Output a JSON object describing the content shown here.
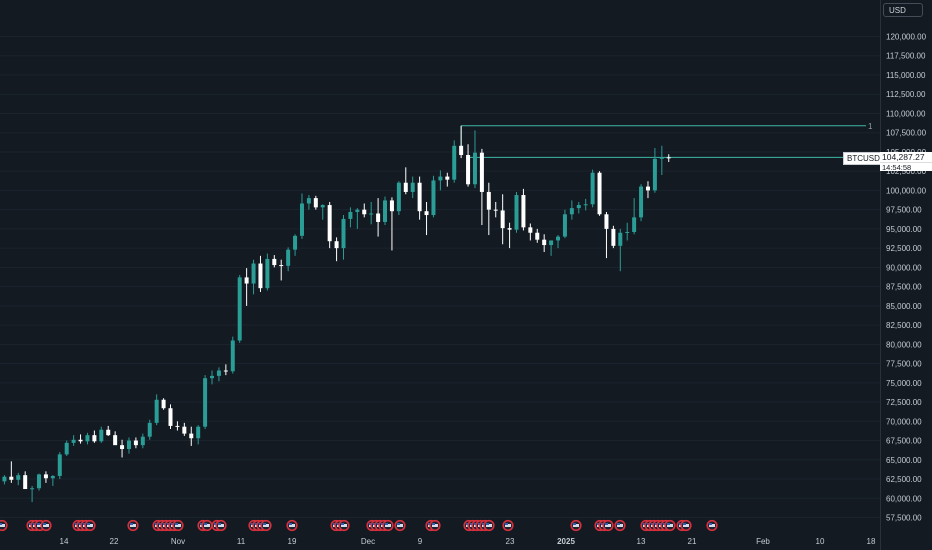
{
  "symbol": "BTCUSD",
  "currency": "USD",
  "last_price": "104,287.27",
  "countdown": "14:54:58",
  "level_marker": "1",
  "colors": {
    "background": "#131a22",
    "up": "#2a9d97",
    "down": "#ffffff",
    "axis_text": "#c7ccd4",
    "level_line": "#3fb6a8",
    "event_badge": "#d8303c"
  },
  "y_ticks": [
    "120,000.00",
    "117,500.00",
    "115,000.00",
    "112,500.00",
    "110,000.00",
    "107,500.00",
    "105,000.00",
    "102,500.00",
    "100,000.00",
    "97,500.00",
    "95,000.00",
    "92,500.00",
    "90,000.00",
    "87,500.00",
    "85,000.00",
    "82,500.00",
    "80,000.00",
    "77,500.00",
    "75,000.00",
    "72,500.00",
    "70,000.00",
    "67,500.00",
    "65,000.00",
    "62,500.00",
    "60,000.00",
    "57,500.00"
  ],
  "x_ticks": [
    "14",
    "22",
    "Nov",
    "11",
    "19",
    "Dec",
    "9",
    "23",
    "2025",
    "13",
    "21",
    "Feb",
    "10",
    "18"
  ],
  "chart_data": {
    "type": "candlestick",
    "y_range": [
      55000,
      124000
    ],
    "horizontal_levels": [
      108400,
      104287.27
    ],
    "candles": [
      {
        "o": 61500,
        "h": 62500,
        "l": 61000,
        "c": 62200
      },
      {
        "o": 62200,
        "h": 63000,
        "l": 61800,
        "c": 62800
      },
      {
        "o": 62800,
        "h": 64800,
        "l": 62000,
        "c": 62400
      },
      {
        "o": 62400,
        "h": 63300,
        "l": 61700,
        "c": 63000
      },
      {
        "o": 63000,
        "h": 63500,
        "l": 61500,
        "c": 61200
      },
      {
        "o": 61200,
        "h": 61600,
        "l": 59500,
        "c": 61300
      },
      {
        "o": 61300,
        "h": 63200,
        "l": 61000,
        "c": 63100
      },
      {
        "o": 63100,
        "h": 63500,
        "l": 62000,
        "c": 62600
      },
      {
        "o": 62600,
        "h": 63000,
        "l": 61600,
        "c": 62900
      },
      {
        "o": 62900,
        "h": 66000,
        "l": 62500,
        "c": 65700
      },
      {
        "o": 65700,
        "h": 67500,
        "l": 65500,
        "c": 67200
      },
      {
        "o": 67200,
        "h": 68200,
        "l": 66800,
        "c": 67600
      },
      {
        "o": 67600,
        "h": 68300,
        "l": 67100,
        "c": 67400
      },
      {
        "o": 67400,
        "h": 68500,
        "l": 67000,
        "c": 68200
      },
      {
        "o": 68200,
        "h": 68800,
        "l": 67200,
        "c": 67400
      },
      {
        "o": 67400,
        "h": 69300,
        "l": 67200,
        "c": 68900
      },
      {
        "o": 68900,
        "h": 69400,
        "l": 68100,
        "c": 68200
      },
      {
        "o": 68200,
        "h": 68700,
        "l": 67200,
        "c": 66900
      },
      {
        "o": 66900,
        "h": 67600,
        "l": 65300,
        "c": 66400
      },
      {
        "o": 66400,
        "h": 67900,
        "l": 65800,
        "c": 67500
      },
      {
        "o": 67500,
        "h": 67900,
        "l": 66500,
        "c": 66900
      },
      {
        "o": 66900,
        "h": 68400,
        "l": 66500,
        "c": 68000
      },
      {
        "o": 68000,
        "h": 70200,
        "l": 67600,
        "c": 69800
      },
      {
        "o": 69800,
        "h": 73500,
        "l": 69500,
        "c": 72800
      },
      {
        "o": 72800,
        "h": 73000,
        "l": 71500,
        "c": 71700
      },
      {
        "o": 71700,
        "h": 72200,
        "l": 69000,
        "c": 69400
      },
      {
        "o": 69400,
        "h": 70000,
        "l": 68800,
        "c": 69300
      },
      {
        "o": 69300,
        "h": 69800,
        "l": 68100,
        "c": 68400
      },
      {
        "o": 68400,
        "h": 69300,
        "l": 66800,
        "c": 67800
      },
      {
        "o": 67800,
        "h": 69500,
        "l": 67000,
        "c": 69300
      },
      {
        "o": 69300,
        "h": 76000,
        "l": 69000,
        "c": 75600
      },
      {
        "o": 75600,
        "h": 76600,
        "l": 74800,
        "c": 75900
      },
      {
        "o": 75900,
        "h": 77000,
        "l": 75200,
        "c": 76600
      },
      {
        "o": 76600,
        "h": 77400,
        "l": 76000,
        "c": 76500
      },
      {
        "o": 76500,
        "h": 81000,
        "l": 76200,
        "c": 80500
      },
      {
        "o": 80500,
        "h": 89000,
        "l": 80200,
        "c": 88700
      },
      {
        "o": 88700,
        "h": 89900,
        "l": 85000,
        "c": 87900
      },
      {
        "o": 87900,
        "h": 91000,
        "l": 86500,
        "c": 90500
      },
      {
        "o": 90500,
        "h": 91500,
        "l": 86800,
        "c": 87300
      },
      {
        "o": 87300,
        "h": 91800,
        "l": 87000,
        "c": 91100
      },
      {
        "o": 91100,
        "h": 91600,
        "l": 90000,
        "c": 90300
      },
      {
        "o": 90300,
        "h": 91000,
        "l": 88300,
        "c": 90200
      },
      {
        "o": 90200,
        "h": 92600,
        "l": 89500,
        "c": 92300
      },
      {
        "o": 92300,
        "h": 94300,
        "l": 91500,
        "c": 94100
      },
      {
        "o": 94100,
        "h": 99600,
        "l": 93700,
        "c": 98300
      },
      {
        "o": 98300,
        "h": 99400,
        "l": 97500,
        "c": 99000
      },
      {
        "o": 99000,
        "h": 99300,
        "l": 97500,
        "c": 97800
      },
      {
        "o": 97800,
        "h": 98200,
        "l": 96200,
        "c": 98100
      },
      {
        "o": 98100,
        "h": 98500,
        "l": 92500,
        "c": 93400
      },
      {
        "o": 93400,
        "h": 93900,
        "l": 90800,
        "c": 92500
      },
      {
        "o": 92500,
        "h": 96800,
        "l": 91000,
        "c": 96300
      },
      {
        "o": 96300,
        "h": 97800,
        "l": 95200,
        "c": 97200
      },
      {
        "o": 97200,
        "h": 97700,
        "l": 95000,
        "c": 97500
      },
      {
        "o": 97500,
        "h": 98300,
        "l": 96500,
        "c": 96900
      },
      {
        "o": 96900,
        "h": 98500,
        "l": 95600,
        "c": 97000
      },
      {
        "o": 97000,
        "h": 99000,
        "l": 94000,
        "c": 95900
      },
      {
        "o": 95900,
        "h": 99200,
        "l": 95500,
        "c": 98700
      },
      {
        "o": 98700,
        "h": 99100,
        "l": 92200,
        "c": 97300
      },
      {
        "o": 97300,
        "h": 101200,
        "l": 96800,
        "c": 101000
      },
      {
        "o": 101000,
        "h": 103000,
        "l": 99500,
        "c": 99800
      },
      {
        "o": 99800,
        "h": 101800,
        "l": 99000,
        "c": 101000
      },
      {
        "o": 101000,
        "h": 101800,
        "l": 96200,
        "c": 97300
      },
      {
        "o": 97300,
        "h": 98500,
        "l": 94200,
        "c": 96800
      },
      {
        "o": 96800,
        "h": 101900,
        "l": 96500,
        "c": 101300
      },
      {
        "o": 101300,
        "h": 102600,
        "l": 100000,
        "c": 101800
      },
      {
        "o": 101800,
        "h": 102300,
        "l": 100500,
        "c": 101400
      },
      {
        "o": 101400,
        "h": 106500,
        "l": 101000,
        "c": 105800
      },
      {
        "o": 105800,
        "h": 108400,
        "l": 104200,
        "c": 104600
      },
      {
        "o": 104600,
        "h": 106000,
        "l": 100500,
        "c": 100800
      },
      {
        "o": 100800,
        "h": 107800,
        "l": 100300,
        "c": 104900
      },
      {
        "o": 104900,
        "h": 105400,
        "l": 95500,
        "c": 99800
      },
      {
        "o": 99800,
        "h": 101000,
        "l": 94200,
        "c": 97500
      },
      {
        "o": 97500,
        "h": 98500,
        "l": 96500,
        "c": 97400
      },
      {
        "o": 97400,
        "h": 99500,
        "l": 93000,
        "c": 95100
      },
      {
        "o": 95100,
        "h": 95800,
        "l": 92500,
        "c": 94900
      },
      {
        "o": 94900,
        "h": 99800,
        "l": 94500,
        "c": 99400
      },
      {
        "o": 99400,
        "h": 100200,
        "l": 94800,
        "c": 95200
      },
      {
        "o": 95200,
        "h": 95700,
        "l": 93500,
        "c": 94500
      },
      {
        "o": 94500,
        "h": 95000,
        "l": 93200,
        "c": 93600
      },
      {
        "o": 93600,
        "h": 94300,
        "l": 92000,
        "c": 92900
      },
      {
        "o": 92900,
        "h": 93500,
        "l": 91500,
        "c": 93500
      },
      {
        "o": 93500,
        "h": 94200,
        "l": 92500,
        "c": 94000
      },
      {
        "o": 94000,
        "h": 97500,
        "l": 93800,
        "c": 96900
      },
      {
        "o": 96900,
        "h": 98700,
        "l": 96200,
        "c": 97700
      },
      {
        "o": 97700,
        "h": 98500,
        "l": 97000,
        "c": 98100
      },
      {
        "o": 98100,
        "h": 98900,
        "l": 97400,
        "c": 98200
      },
      {
        "o": 98200,
        "h": 102700,
        "l": 97800,
        "c": 102300
      },
      {
        "o": 102300,
        "h": 102500,
        "l": 96700,
        "c": 96900
      },
      {
        "o": 96900,
        "h": 97200,
        "l": 91200,
        "c": 95000
      },
      {
        "o": 95000,
        "h": 95400,
        "l": 92500,
        "c": 92800
      },
      {
        "o": 92800,
        "h": 95000,
        "l": 89500,
        "c": 94500
      },
      {
        "o": 94500,
        "h": 95800,
        "l": 93500,
        "c": 94600
      },
      {
        "o": 94600,
        "h": 99000,
        "l": 94300,
        "c": 96500
      },
      {
        "o": 96500,
        "h": 100800,
        "l": 96000,
        "c": 100500
      },
      {
        "o": 100500,
        "h": 101200,
        "l": 99000,
        "c": 100000
      },
      {
        "o": 100000,
        "h": 105500,
        "l": 99700,
        "c": 104100
      },
      {
        "o": 104100,
        "h": 105800,
        "l": 102000,
        "c": 104300
      },
      {
        "o": 104300,
        "h": 104700,
        "l": 103700,
        "c": 104287
      }
    ]
  }
}
